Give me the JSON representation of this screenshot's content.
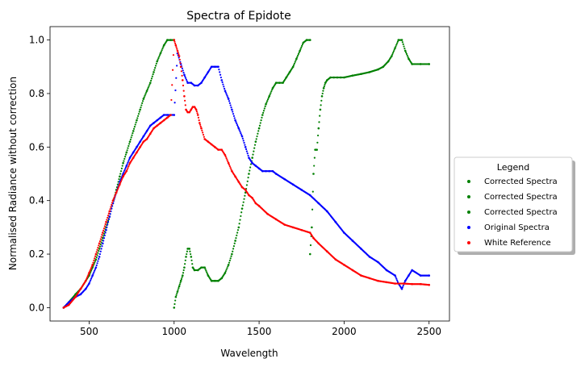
{
  "chart_data": {
    "type": "scatter",
    "title": "Spectra of Epidote",
    "xlabel": "Wavelength",
    "ylabel": "Normalised Radiance without correction",
    "xlim": [
      270,
      2620
    ],
    "ylim": [
      -0.05,
      1.05
    ],
    "xticks": [
      500,
      1000,
      1500,
      2000,
      2500
    ],
    "yticks": [
      0.0,
      0.2,
      0.4,
      0.6,
      0.8,
      1.0
    ],
    "grid": false,
    "legend": {
      "title": "Legend",
      "placement": "center-right, outside plot"
    },
    "series": [
      {
        "name": "Corrected Spectra",
        "color": "#008000",
        "x": [
          350,
          380,
          420,
          450,
          480,
          500,
          520,
          540,
          560,
          580,
          600,
          620,
          640,
          660,
          680,
          700,
          720,
          740,
          760,
          780,
          800,
          820,
          840,
          860,
          880,
          900,
          920,
          940,
          960,
          980,
          1000
        ],
        "y": [
          0.0,
          0.02,
          0.05,
          0.07,
          0.1,
          0.12,
          0.15,
          0.18,
          0.22,
          0.26,
          0.3,
          0.34,
          0.39,
          0.44,
          0.49,
          0.54,
          0.58,
          0.62,
          0.66,
          0.7,
          0.74,
          0.78,
          0.81,
          0.84,
          0.88,
          0.92,
          0.95,
          0.98,
          1.0,
          1.0,
          1.0
        ]
      },
      {
        "name": "Corrected Spectra",
        "color": "#008000",
        "x": [
          1000,
          1010,
          1020,
          1030,
          1040,
          1050,
          1060,
          1070,
          1080,
          1090,
          1100,
          1110,
          1120,
          1140,
          1160,
          1180,
          1200,
          1220,
          1240,
          1260,
          1280,
          1300,
          1320,
          1340,
          1360,
          1380,
          1400,
          1420,
          1440,
          1460,
          1480,
          1500,
          1520,
          1540,
          1560,
          1580,
          1600,
          1620,
          1640,
          1660,
          1680,
          1700,
          1720,
          1740,
          1760,
          1780,
          1800
        ],
        "y": [
          0.0,
          0.04,
          0.06,
          0.08,
          0.1,
          0.12,
          0.15,
          0.19,
          0.22,
          0.22,
          0.19,
          0.15,
          0.14,
          0.14,
          0.15,
          0.15,
          0.12,
          0.1,
          0.1,
          0.1,
          0.11,
          0.13,
          0.16,
          0.2,
          0.25,
          0.3,
          0.37,
          0.43,
          0.5,
          0.56,
          0.62,
          0.67,
          0.72,
          0.76,
          0.79,
          0.82,
          0.84,
          0.84,
          0.84,
          0.86,
          0.88,
          0.9,
          0.93,
          0.96,
          0.99,
          1.0,
          1.0
        ]
      },
      {
        "name": "Corrected Spectra",
        "color": "#008000",
        "x": [
          1800,
          1810,
          1820,
          1830,
          1840,
          1850,
          1860,
          1870,
          1880,
          1890,
          1900,
          1920,
          1940,
          1960,
          1980,
          2000,
          2050,
          2100,
          2150,
          2200,
          2230,
          2260,
          2280,
          2300,
          2320,
          2340,
          2360,
          2380,
          2400,
          2450,
          2500
        ],
        "y": [
          0.2,
          0.3,
          0.5,
          0.59,
          0.59,
          0.67,
          0.74,
          0.79,
          0.82,
          0.84,
          0.85,
          0.86,
          0.86,
          0.86,
          0.86,
          0.86,
          0.867,
          0.873,
          0.88,
          0.89,
          0.9,
          0.92,
          0.94,
          0.97,
          1.0,
          1.0,
          0.96,
          0.93,
          0.91,
          0.91,
          0.91
        ]
      },
      {
        "name": "Original Spectra",
        "color": "#0000ff",
        "x": [
          350,
          380,
          420,
          450,
          480,
          500,
          520,
          540,
          560,
          580,
          600,
          620,
          640,
          660,
          680,
          700,
          720,
          740,
          760,
          780,
          800,
          820,
          840,
          860,
          880,
          900,
          920,
          940,
          960,
          980,
          1000,
          1020,
          1040,
          1060,
          1080,
          1100,
          1120,
          1140,
          1160,
          1180,
          1200,
          1220,
          1240,
          1260,
          1280,
          1300,
          1320,
          1340,
          1360,
          1380,
          1400,
          1420,
          1440,
          1460,
          1480,
          1500,
          1520,
          1540,
          1560,
          1580,
          1600,
          1650,
          1700,
          1750,
          1800,
          1850,
          1900,
          1950,
          2000,
          2050,
          2100,
          2150,
          2200,
          2250,
          2300,
          2320,
          2340,
          2360,
          2380,
          2400,
          2450,
          2500
        ],
        "y": [
          0.0,
          0.02,
          0.04,
          0.05,
          0.07,
          0.09,
          0.12,
          0.15,
          0.19,
          0.24,
          0.29,
          0.34,
          0.39,
          0.43,
          0.47,
          0.5,
          0.53,
          0.56,
          0.58,
          0.6,
          0.62,
          0.64,
          0.66,
          0.68,
          0.69,
          0.7,
          0.71,
          0.72,
          0.72,
          0.72,
          0.72,
          0.95,
          0.91,
          0.87,
          0.84,
          0.84,
          0.83,
          0.83,
          0.84,
          0.86,
          0.88,
          0.9,
          0.9,
          0.9,
          0.85,
          0.81,
          0.78,
          0.74,
          0.7,
          0.67,
          0.64,
          0.6,
          0.56,
          0.54,
          0.53,
          0.52,
          0.51,
          0.51,
          0.51,
          0.51,
          0.5,
          0.48,
          0.46,
          0.44,
          0.42,
          0.39,
          0.36,
          0.32,
          0.28,
          0.25,
          0.22,
          0.19,
          0.17,
          0.14,
          0.12,
          0.09,
          0.07,
          0.1,
          0.12,
          0.14,
          0.12,
          0.12
        ]
      },
      {
        "name": "White Reference",
        "color": "#ff0000",
        "x": [
          350,
          380,
          420,
          450,
          480,
          500,
          520,
          540,
          560,
          580,
          600,
          620,
          640,
          660,
          680,
          700,
          720,
          740,
          760,
          780,
          800,
          820,
          840,
          860,
          880,
          900,
          920,
          940,
          960,
          980,
          1000,
          1010,
          1020,
          1030,
          1040,
          1050,
          1060,
          1070,
          1080,
          1090,
          1100,
          1110,
          1120,
          1130,
          1140,
          1150,
          1160,
          1180,
          1200,
          1220,
          1240,
          1260,
          1280,
          1300,
          1320,
          1340,
          1360,
          1380,
          1400,
          1420,
          1440,
          1460,
          1480,
          1500,
          1550,
          1600,
          1650,
          1700,
          1750,
          1800,
          1820,
          1850,
          1900,
          1950,
          2000,
          2050,
          2100,
          2150,
          2200,
          2250,
          2300,
          2350,
          2400,
          2450,
          2500
        ],
        "y": [
          0.0,
          0.01,
          0.04,
          0.07,
          0.1,
          0.13,
          0.16,
          0.2,
          0.24,
          0.28,
          0.32,
          0.36,
          0.4,
          0.43,
          0.46,
          0.49,
          0.51,
          0.54,
          0.56,
          0.58,
          0.6,
          0.62,
          0.63,
          0.65,
          0.67,
          0.68,
          0.69,
          0.7,
          0.71,
          0.72,
          1.0,
          0.98,
          0.96,
          0.94,
          0.9,
          0.85,
          0.79,
          0.74,
          0.73,
          0.73,
          0.74,
          0.75,
          0.75,
          0.74,
          0.72,
          0.69,
          0.67,
          0.63,
          0.62,
          0.61,
          0.6,
          0.59,
          0.59,
          0.57,
          0.54,
          0.51,
          0.49,
          0.47,
          0.45,
          0.44,
          0.42,
          0.41,
          0.39,
          0.38,
          0.35,
          0.33,
          0.31,
          0.3,
          0.29,
          0.28,
          0.26,
          0.24,
          0.21,
          0.18,
          0.16,
          0.14,
          0.12,
          0.11,
          0.1,
          0.095,
          0.09,
          0.09,
          0.088,
          0.088,
          0.085
        ]
      }
    ]
  }
}
